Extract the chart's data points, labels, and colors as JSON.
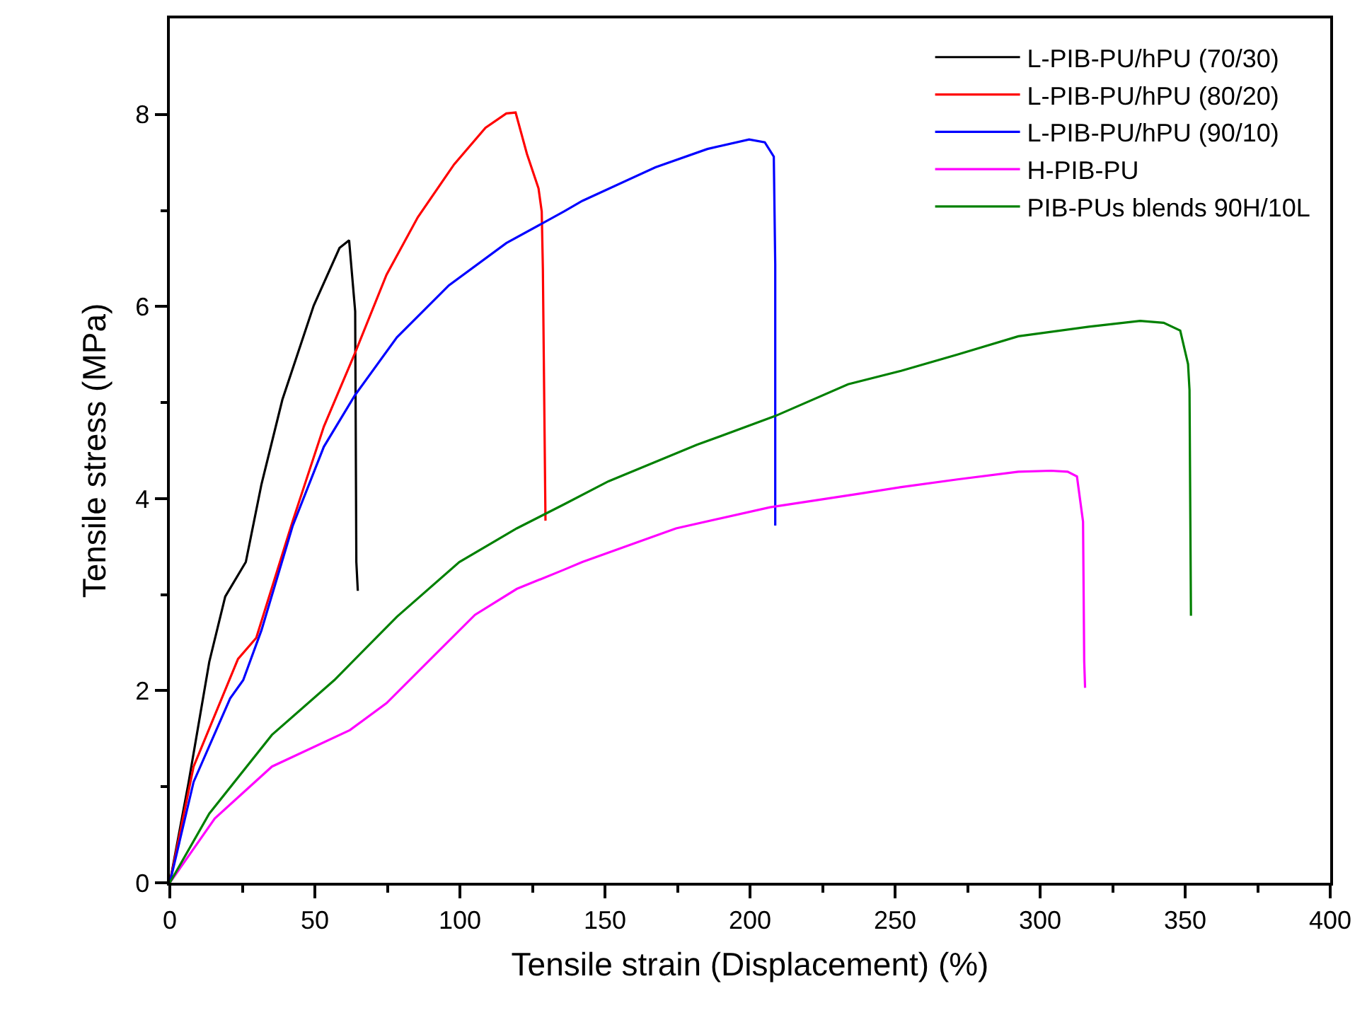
{
  "chart_data": {
    "type": "line",
    "xlabel": "Tensile strain (Displacement) (%)",
    "ylabel": "Tensile stress (MPa)",
    "xlim": [
      0,
      400
    ],
    "ylim": [
      0,
      9
    ],
    "xticks": [
      0,
      {
        "value": 25,
        "label": null
      },
      50,
      {
        "value": 75,
        "label": null
      },
      100,
      {
        "value": 125,
        "label": null
      },
      150,
      {
        "value": 175,
        "label": null
      },
      200,
      {
        "value": 225,
        "label": null
      },
      250,
      {
        "value": 275,
        "label": null
      },
      300,
      {
        "value": 325,
        "label": null
      },
      350,
      {
        "value": 375,
        "label": null
      },
      400
    ],
    "yticks": [
      0,
      {
        "value": 1,
        "label": null
      },
      2,
      {
        "value": 3,
        "label": null
      },
      4,
      {
        "value": 5,
        "label": null
      },
      6,
      {
        "value": 7,
        "label": null
      },
      8
    ],
    "grid": false,
    "legend": "top right",
    "marker": "none",
    "line_style": "solid",
    "series": [
      {
        "name": "L-PIB-PU/hPU (70/30)",
        "color": "#000000",
        "x": [
          0,
          6.5,
          13.6,
          19.1,
          26.2,
          31.6,
          38.8,
          49.6,
          58.5,
          61.8,
          63.9,
          64.3,
          64.8
        ],
        "values": [
          0,
          1.05,
          2.3,
          2.98,
          3.34,
          4.15,
          5.03,
          6.01,
          6.61,
          6.69,
          5.95,
          3.34,
          3.04
        ]
      },
      {
        "name": "L-PIB-PU/hPU (80/20)",
        "color": "#ff0000",
        "x": [
          0,
          8.2,
          23.5,
          29.8,
          42.4,
          53.1,
          63.9,
          74.7,
          85.5,
          98,
          108.8,
          116,
          119.2,
          123.1,
          127.1,
          128.2,
          128.6,
          129.5
        ],
        "values": [
          0,
          1.21,
          2.33,
          2.55,
          3.77,
          4.75,
          5.52,
          6.33,
          6.93,
          7.48,
          7.86,
          8.01,
          8.02,
          7.59,
          7.23,
          6.99,
          6.39,
          3.77
        ]
      },
      {
        "name": "L-PIB-PU/hPU (90/10)",
        "color": "#0000ff",
        "x": [
          0,
          8.2,
          20.8,
          25.3,
          31.6,
          42.4,
          53.1,
          63.9,
          78.3,
          96.2,
          116,
          135.9,
          142.2,
          167.4,
          185.3,
          199.7,
          205.1,
          208.2,
          208.7,
          208.7
        ],
        "values": [
          0,
          1.05,
          1.92,
          2.11,
          2.63,
          3.72,
          4.54,
          5.08,
          5.68,
          6.22,
          6.66,
          6.99,
          7.1,
          7.45,
          7.64,
          7.74,
          7.71,
          7.56,
          6.44,
          3.72
        ]
      },
      {
        "name": "H-PIB-PU",
        "color": "#ff00ff",
        "x": [
          0,
          15.5,
          35.2,
          62.1,
          74.7,
          90.9,
          105.2,
          119.6,
          135.9,
          142.2,
          174.5,
          206.9,
          237.4,
          252.1,
          271.5,
          292.5,
          303.8,
          309.5,
          312.7,
          314.8,
          315.2,
          315.5
        ],
        "values": [
          0,
          0.67,
          1.21,
          1.59,
          1.87,
          2.36,
          2.79,
          3.06,
          3.26,
          3.34,
          3.69,
          3.91,
          4.05,
          4.12,
          4.2,
          4.28,
          4.29,
          4.28,
          4.23,
          3.76,
          2.31,
          2.03
        ]
      },
      {
        "name": "PIB-PUs blends 90H/10L",
        "color": "#008000",
        "x": [
          0,
          13.6,
          35.2,
          56.7,
          78.3,
          99.8,
          119.6,
          135.9,
          151.2,
          181.7,
          208.7,
          233.8,
          252.1,
          271.5,
          292.5,
          316.8,
          334.5,
          342.6,
          348.3,
          351,
          351.5,
          352
        ],
        "values": [
          0,
          0.72,
          1.54,
          2.11,
          2.77,
          3.34,
          3.69,
          3.94,
          4.18,
          4.56,
          4.86,
          5.19,
          5.33,
          5.5,
          5.69,
          5.79,
          5.85,
          5.83,
          5.75,
          5.4,
          5.13,
          2.78
        ]
      }
    ]
  }
}
